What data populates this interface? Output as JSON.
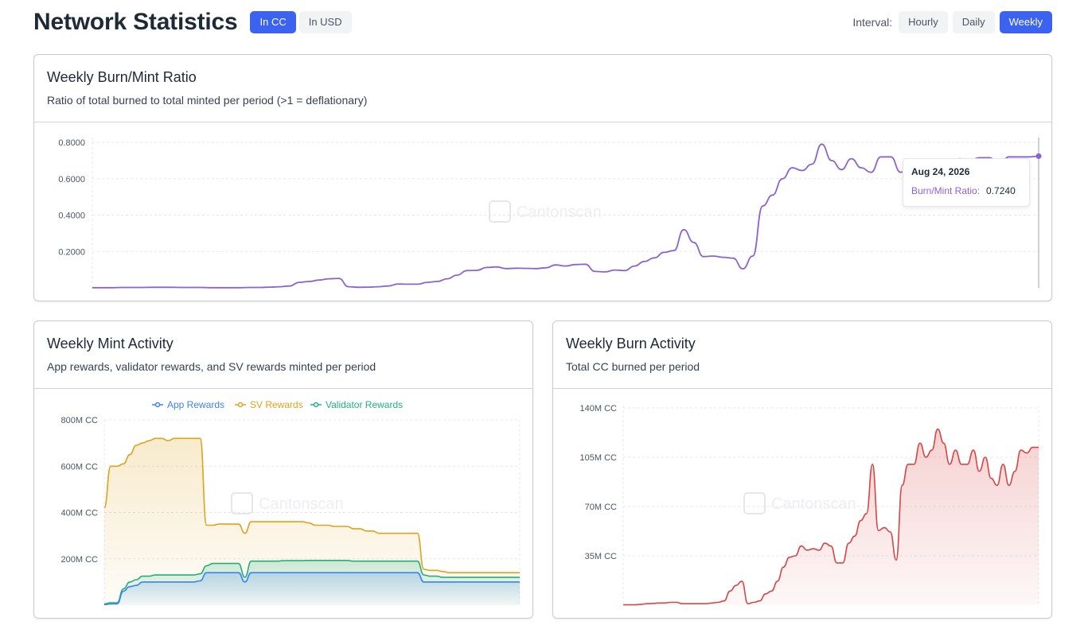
{
  "header": {
    "title": "Network Statistics",
    "unit_toggle": [
      {
        "label": "In CC",
        "active": true
      },
      {
        "label": "In USD",
        "active": false
      }
    ],
    "interval_label": "Interval:",
    "intervals": [
      {
        "label": "Hourly",
        "active": false
      },
      {
        "label": "Daily",
        "active": false
      },
      {
        "label": "Weekly",
        "active": true
      }
    ]
  },
  "watermark": "Cantonscan",
  "colors": {
    "accent": "#3b63f0",
    "ratio_line": "#8a63d2",
    "app": "#3b82f6",
    "sv": "#e0a21b",
    "validator": "#22b07d",
    "burn": "#d94545"
  },
  "ratio_card": {
    "title": "Weekly Burn/Mint Ratio",
    "subtitle": "Ratio of total burned to total minted per period (>1 = deflationary)",
    "tooltip": {
      "date": "Aug 24, 2026",
      "series_label": "Burn/Mint Ratio:",
      "value": "0.7240"
    }
  },
  "mint_card": {
    "title": "Weekly Mint Activity",
    "subtitle": "App rewards, validator rewards, and SV rewards minted per period",
    "legend": [
      "App Rewards",
      "SV Rewards",
      "Validator Rewards"
    ]
  },
  "burn_card": {
    "title": "Weekly Burn Activity",
    "subtitle": "Total CC burned per period"
  },
  "chart_data": [
    {
      "type": "line",
      "title": "Weekly Burn/Mint Ratio",
      "y_ticks": [
        "0.8000",
        "0.6000",
        "0.4000",
        "0.2000"
      ],
      "ylim": [
        0,
        0.8
      ],
      "series": [
        {
          "values": [
            0.001,
            0.001,
            0.001,
            0.002,
            0.002,
            0.002,
            0.003,
            0.003,
            0.003,
            0.002,
            0.002,
            0.002,
            0.001,
            0.001,
            0.001,
            0.001,
            0.002,
            0.002,
            0.004,
            0.006,
            0.01,
            0.03,
            0.035,
            0.043,
            0.05,
            0.052,
            0.006,
            0.003,
            0.004,
            0.006,
            0.01,
            0.021,
            0.02,
            0.02,
            0.03,
            0.035,
            0.05,
            0.07,
            0.095,
            0.096,
            0.112,
            0.115,
            0.106,
            0.108,
            0.107,
            0.106,
            0.11,
            0.126,
            0.12,
            0.128,
            0.13,
            0.09,
            0.088,
            0.098,
            0.095,
            0.12,
            0.145,
            0.165,
            0.195,
            0.205,
            0.32,
            0.25,
            0.172,
            0.175,
            0.168,
            0.163,
            0.105,
            0.175,
            0.45,
            0.51,
            0.6,
            0.66,
            0.645,
            0.68,
            0.79,
            0.7,
            0.65,
            0.71,
            0.66,
            0.635,
            0.72,
            0.72,
            0.635,
            0.67,
            0.7,
            0.7,
            0.64,
            0.695,
            0.71,
            0.7,
            0.715,
            0.715,
            0.675,
            0.72,
            0.72,
            0.72,
            0.724
          ]
        }
      ]
    },
    {
      "type": "area",
      "title": "Weekly Mint Activity",
      "y_ticks": [
        "800M CC",
        "600M CC",
        "400M CC",
        "200M CC"
      ],
      "ylim": [
        0,
        800
      ],
      "series": [
        {
          "name": "App Rewards",
          "values": [
            2,
            5,
            5,
            60,
            80,
            85,
            100,
            100,
            100,
            100,
            100,
            100,
            100,
            100,
            100,
            105,
            140,
            140,
            140,
            140,
            140,
            140,
            100,
            140,
            140,
            140,
            140,
            140,
            140,
            140,
            140,
            140,
            140,
            140,
            140,
            140,
            140,
            140,
            140,
            140,
            140,
            140,
            140,
            140,
            140,
            140,
            140,
            140,
            140,
            140,
            100,
            100,
            100,
            100,
            100,
            100,
            100,
            100,
            100,
            100,
            100,
            100,
            100,
            100,
            100,
            100
          ]
        },
        {
          "name": "SV Rewards",
          "values": [
            420,
            600,
            600,
            610,
            650,
            690,
            700,
            710,
            720,
            720,
            710,
            720,
            720,
            720,
            720,
            720,
            345,
            345,
            350,
            350,
            350,
            350,
            310,
            360,
            360,
            360,
            360,
            360,
            360,
            360,
            360,
            360,
            355,
            345,
            345,
            345,
            340,
            340,
            340,
            330,
            330,
            320,
            320,
            310,
            310,
            310,
            310,
            310,
            310,
            310,
            155,
            150,
            150,
            145,
            140,
            140,
            140,
            140,
            140,
            140,
            140,
            140,
            140,
            140,
            140,
            140
          ]
        },
        {
          "name": "Validator Rewards",
          "values": [
            5,
            10,
            10,
            70,
            100,
            110,
            125,
            125,
            130,
            130,
            130,
            130,
            130,
            130,
            130,
            135,
            170,
            180,
            180,
            180,
            180,
            180,
            120,
            190,
            190,
            190,
            190,
            190,
            192,
            192,
            192,
            192,
            193,
            193,
            193,
            193,
            193,
            193,
            193,
            190,
            190,
            190,
            190,
            190,
            190,
            190,
            190,
            190,
            190,
            190,
            130,
            125,
            125,
            120,
            120,
            120,
            120,
            120,
            120,
            120,
            120,
            120,
            120,
            120,
            120,
            120
          ]
        }
      ]
    },
    {
      "type": "area",
      "title": "Weekly Burn Activity",
      "y_ticks": [
        "140M CC",
        "105M CC",
        "70M CC",
        "35M CC"
      ],
      "ylim": [
        0,
        140
      ],
      "series": [
        {
          "values": [
            0.2,
            0.2,
            0.2,
            0.5,
            1,
            1.2,
            1.5,
            1.5,
            2,
            2,
            1,
            1,
            1,
            1,
            1,
            1.5,
            2,
            3,
            10,
            14,
            17,
            1,
            2,
            3,
            8,
            10,
            17,
            27,
            34,
            35,
            42,
            39,
            40,
            39,
            44,
            42,
            30,
            30,
            44,
            49,
            60,
            65,
            100,
            53,
            55,
            52,
            32,
            85,
            100,
            100,
            115,
            105,
            110,
            125,
            115,
            100,
            110,
            100,
            100,
            110,
            95,
            105,
            90,
            85,
            100,
            85,
            95,
            110,
            108,
            112,
            112
          ]
        }
      ]
    }
  ]
}
